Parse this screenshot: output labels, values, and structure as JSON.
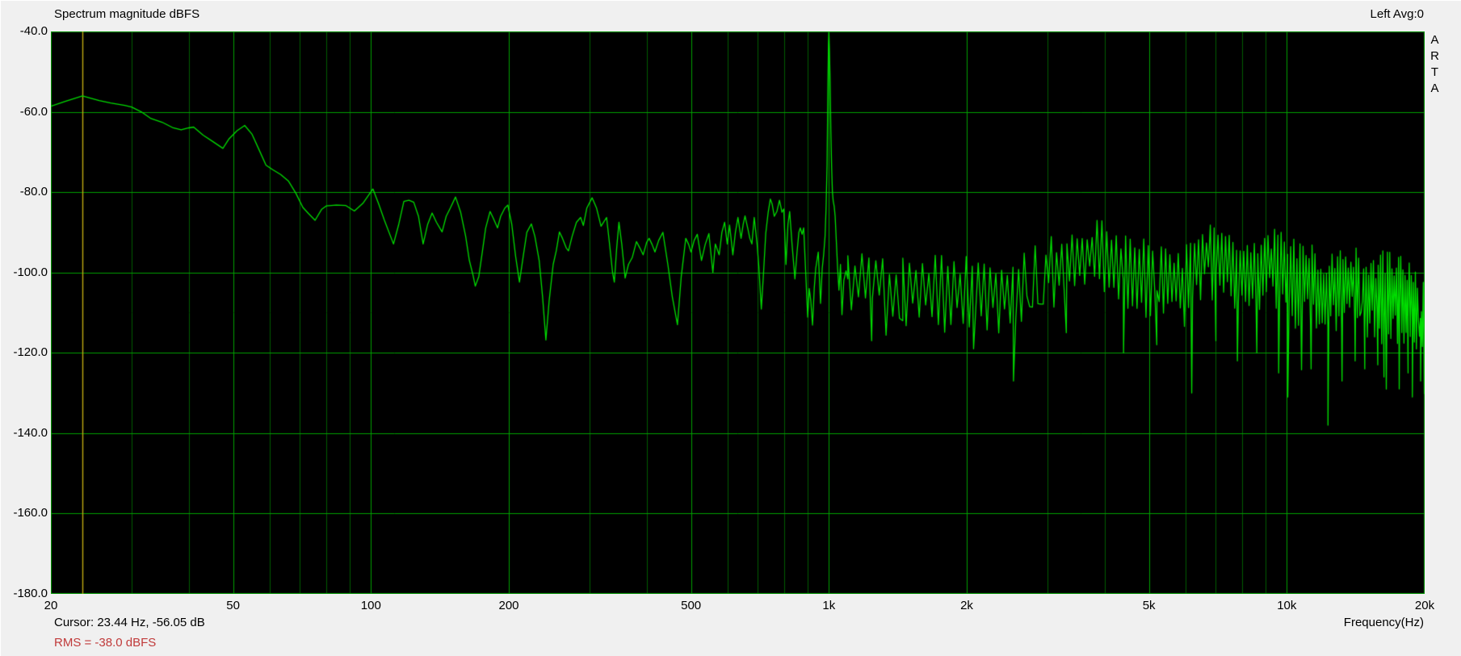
{
  "window": {
    "bg": "#f0f0f0"
  },
  "header": {
    "title": "Spectrum magnitude dBFS",
    "channel_label": "Left  Avg:0",
    "logo": "ARTA"
  },
  "status": {
    "cursor_text": "Cursor: 23.44 Hz, -56.05 dB",
    "rms_text": "RMS =  -38.0 dBFS",
    "rms_color": "#c03a3a"
  },
  "chart_data": {
    "type": "line",
    "title": "Spectrum magnitude dBFS",
    "xlabel": "Frequency(Hz)",
    "ylabel": "dBFS",
    "xscale": "log",
    "xlim": [
      20,
      20000
    ],
    "ylim": [
      -180,
      -40
    ],
    "grid": {
      "bg": "#000000",
      "minor_color": "#005c00",
      "major_color": "#00a000"
    },
    "x_ticks": [
      {
        "f": 20,
        "label": "20"
      },
      {
        "f": 50,
        "label": "50"
      },
      {
        "f": 100,
        "label": "100"
      },
      {
        "f": 200,
        "label": "200"
      },
      {
        "f": 500,
        "label": "500"
      },
      {
        "f": 1000,
        "label": "1k"
      },
      {
        "f": 2000,
        "label": "2k"
      },
      {
        "f": 5000,
        "label": "5k"
      },
      {
        "f": 10000,
        "label": "10k"
      },
      {
        "f": 20000,
        "label": "20k"
      }
    ],
    "minor_grid_freqs": [
      30,
      40,
      60,
      70,
      80,
      90,
      300,
      400,
      600,
      700,
      800,
      900,
      3000,
      4000,
      6000,
      7000,
      8000,
      9000
    ],
    "y_ticks": [
      "-40.0",
      "-60.0",
      "-80.0",
      "-100.0",
      "-120.0",
      "-140.0",
      "-160.0",
      "-180.0"
    ],
    "y_step_db": 20,
    "cursor": {
      "freq": 23.44,
      "db": -56.05,
      "color": "#c0aa10"
    },
    "trace_color": "#00dd00",
    "peak": {
      "freq": 1000,
      "db": -40.2
    },
    "trace_points": [
      [
        20,
        -58.6
      ],
      [
        21.5,
        -57.4
      ],
      [
        23.44,
        -56.05
      ],
      [
        25.5,
        -57.2
      ],
      [
        27,
        -57.8
      ],
      [
        29,
        -58.4
      ],
      [
        30,
        -58.8
      ],
      [
        31.5,
        -60.0
      ],
      [
        33,
        -61.6
      ],
      [
        35,
        -62.6
      ],
      [
        37,
        -64.0
      ],
      [
        38.5,
        -64.5
      ],
      [
        40,
        -64.0
      ],
      [
        41,
        -63.8
      ],
      [
        43,
        -65.8
      ],
      [
        45,
        -67.3
      ],
      [
        47.5,
        -69.1
      ],
      [
        49,
        -66.7
      ],
      [
        51,
        -64.7
      ],
      [
        53,
        -63.4
      ],
      [
        55,
        -65.6
      ],
      [
        57,
        -69.5
      ],
      [
        59,
        -73.3
      ],
      [
        61,
        -74.4
      ],
      [
        63.5,
        -75.6
      ],
      [
        66,
        -77.2
      ],
      [
        68.5,
        -80.2
      ],
      [
        71,
        -83.8
      ],
      [
        73,
        -85.3
      ],
      [
        75.5,
        -87.0
      ],
      [
        78,
        -84.3
      ],
      [
        80,
        -83.4
      ],
      [
        84,
        -83.2
      ],
      [
        88,
        -83.3
      ],
      [
        92,
        -84.7
      ],
      [
        96,
        -82.8
      ],
      [
        101,
        -79.2
      ],
      [
        104,
        -83
      ],
      [
        107,
        -87
      ],
      [
        112,
        -92.9
      ],
      [
        115,
        -88
      ],
      [
        118,
        -82.3
      ],
      [
        121,
        -82.0
      ],
      [
        124,
        -82.5
      ],
      [
        127,
        -86
      ],
      [
        130,
        -92.9
      ],
      [
        133,
        -88
      ],
      [
        136,
        -85.2
      ],
      [
        139,
        -87.5
      ],
      [
        143,
        -89.9
      ],
      [
        146,
        -86
      ],
      [
        149,
        -84
      ],
      [
        153,
        -81.2
      ],
      [
        157,
        -85
      ],
      [
        161,
        -91
      ],
      [
        164,
        -97
      ],
      [
        167,
        -100.6
      ],
      [
        169,
        -103.4
      ],
      [
        172,
        -101
      ],
      [
        175,
        -95
      ],
      [
        178,
        -89
      ],
      [
        182,
        -84.8
      ],
      [
        185,
        -86.5
      ],
      [
        189,
        -88.9
      ],
      [
        192,
        -86
      ],
      [
        196,
        -84
      ],
      [
        199,
        -83.2
      ],
      [
        203,
        -88
      ],
      [
        207,
        -96
      ],
      [
        211,
        -102.4
      ],
      [
        215,
        -96
      ],
      [
        219,
        -90
      ],
      [
        224,
        -87.9
      ],
      [
        228,
        -91
      ],
      [
        233,
        -97
      ],
      [
        237,
        -106
      ],
      [
        241,
        -116.8
      ],
      [
        245,
        -107
      ],
      [
        250,
        -98
      ],
      [
        254,
        -94.5
      ],
      [
        258,
        -89.9
      ],
      [
        262,
        -91.5
      ],
      [
        267,
        -93.9
      ],
      [
        270,
        -94.6
      ],
      [
        275,
        -91
      ],
      [
        281,
        -87.5
      ],
      [
        287,
        -86.3
      ],
      [
        291,
        -88.3
      ],
      [
        296,
        -84
      ],
      [
        304,
        -81.4
      ],
      [
        311,
        -84
      ],
      [
        318,
        -88.5
      ],
      [
        327,
        -86.3
      ],
      [
        332,
        -93
      ],
      [
        337,
        -100
      ],
      [
        340,
        -102.4
      ],
      [
        344,
        -94
      ],
      [
        348,
        -87.5
      ],
      [
        353,
        -93
      ],
      [
        359,
        -101.4
      ],
      [
        365,
        -98
      ],
      [
        372,
        -96.3
      ],
      [
        380,
        -92.3
      ],
      [
        387,
        -94
      ],
      [
        393,
        -95.6
      ],
      [
        400,
        -92.5
      ],
      [
        405,
        -91.5
      ],
      [
        411,
        -93
      ],
      [
        417,
        -94.9
      ],
      [
        425,
        -92
      ],
      [
        434,
        -90
      ],
      [
        445,
        -98
      ],
      [
        455,
        -106
      ],
      [
        467,
        -113
      ],
      [
        476,
        -101
      ],
      [
        487,
        -91.5
      ],
      [
        494,
        -93
      ],
      [
        500,
        -94.9
      ],
      [
        508,
        -92
      ],
      [
        516,
        -90.5
      ],
      [
        527,
        -97
      ],
      [
        537,
        -93
      ],
      [
        547,
        -90.3
      ],
      [
        558,
        -100
      ],
      [
        565,
        -92.9
      ],
      [
        576,
        -95.6
      ],
      [
        584,
        -90
      ],
      [
        592,
        -87.5
      ],
      [
        600,
        -92.9
      ],
      [
        607,
        -88.2
      ],
      [
        617,
        -95.6
      ],
      [
        625,
        -90
      ],
      [
        633,
        -86.3
      ],
      [
        643,
        -91.5
      ],
      [
        650,
        -88
      ],
      [
        656,
        -85.9
      ],
      [
        665,
        -89
      ],
      [
        672,
        -91.5
      ],
      [
        679,
        -92.9
      ],
      [
        687,
        -86.3
      ],
      [
        697,
        -92.9
      ],
      [
        703,
        -98.4
      ],
      [
        712,
        -109.1
      ],
      [
        720,
        -100
      ],
      [
        728,
        -90.3
      ],
      [
        737,
        -85
      ],
      [
        745,
        -81.7
      ],
      [
        752,
        -83
      ],
      [
        760,
        -86
      ],
      [
        770,
        -84.8
      ],
      [
        780,
        -82
      ],
      [
        790,
        -85
      ],
      [
        797,
        -84.2
      ],
      [
        806,
        -98
      ],
      [
        814,
        -88
      ],
      [
        821,
        -84.8
      ],
      [
        831,
        -93
      ],
      [
        843,
        -101.6
      ],
      [
        852,
        -95
      ],
      [
        860,
        -90
      ],
      [
        866,
        -88.9
      ],
      [
        874,
        -90.5
      ],
      [
        881,
        -88.9
      ],
      [
        890,
        -100
      ],
      [
        899,
        -111.1
      ],
      [
        906,
        -104
      ],
      [
        913,
        -107
      ],
      [
        921,
        -113.1
      ],
      [
        929,
        -104
      ],
      [
        936,
        -99
      ],
      [
        948,
        -94.9
      ],
      [
        959,
        -107.7
      ],
      [
        967,
        -99
      ],
      [
        974,
        -95.6
      ],
      [
        981,
        -91
      ],
      [
        986,
        -84
      ],
      [
        991,
        -73
      ],
      [
        995,
        -54
      ],
      [
        998,
        -43
      ],
      [
        1000,
        -40.2
      ],
      [
        1003,
        -45
      ],
      [
        1006,
        -52
      ],
      [
        1010,
        -65
      ],
      [
        1014,
        -74
      ],
      [
        1018,
        -80
      ],
      [
        1022,
        -82.2
      ],
      [
        1027,
        -83.5
      ],
      [
        1032,
        -86
      ],
      [
        1038,
        -92
      ],
      [
        1045,
        -99
      ],
      [
        1052,
        -104.4
      ],
      [
        1060,
        -98
      ],
      [
        1068,
        -110.5
      ],
      [
        1078,
        -102
      ],
      [
        1090,
        -99.6
      ],
      [
        1100,
        -101.6
      ]
    ],
    "noise_band": {
      "start_freq": 1100,
      "freqs": [
        1100,
        1300,
        1600,
        2000,
        2400,
        2800,
        3200,
        3600,
        4000,
        4500,
        5000,
        5500,
        6000,
        6500,
        6900,
        7400,
        8000,
        8700,
        9400,
        10000,
        11000,
        12000,
        13000,
        14000,
        15000,
        16000,
        17000,
        18000,
        19000,
        20000
      ],
      "mean": [
        -101,
        -103,
        -103,
        -104,
        -105,
        -101,
        -98,
        -95,
        -95,
        -98,
        -100,
        -101,
        -102,
        -98,
        -92,
        -97,
        -100,
        -99,
        -97,
        -100,
        -102,
        -104,
        -102,
        -102,
        -104,
        -105,
        -104,
        -106,
        -107,
        -107
      ],
      "spread": [
        9,
        9,
        10,
        10,
        11,
        10,
        10,
        10,
        11,
        11,
        11,
        11,
        12,
        10,
        8,
        10,
        11,
        11,
        11,
        12,
        12,
        13,
        12,
        12,
        13,
        13,
        13,
        13,
        13,
        13
      ]
    },
    "deep_dips": [
      [
        1240,
        -117
      ],
      [
        1450,
        -112
      ],
      [
        2070,
        -119
      ],
      [
        2530,
        -127
      ],
      [
        3300,
        -115
      ],
      [
        4400,
        -120
      ],
      [
        5200,
        -118
      ],
      [
        6200,
        -130
      ],
      [
        7000,
        -117
      ],
      [
        7800,
        -122
      ],
      [
        8600,
        -120
      ],
      [
        9600,
        -125
      ],
      [
        10050,
        -131
      ],
      [
        11300,
        -124
      ],
      [
        12300,
        -138
      ],
      [
        13200,
        -127
      ],
      [
        14100,
        -122
      ],
      [
        14800,
        -124
      ],
      [
        15800,
        -123
      ],
      [
        16300,
        -126
      ],
      [
        17600,
        -129
      ],
      [
        18400,
        -125
      ],
      [
        18800,
        -131
      ],
      [
        19600,
        -127
      ]
    ]
  }
}
